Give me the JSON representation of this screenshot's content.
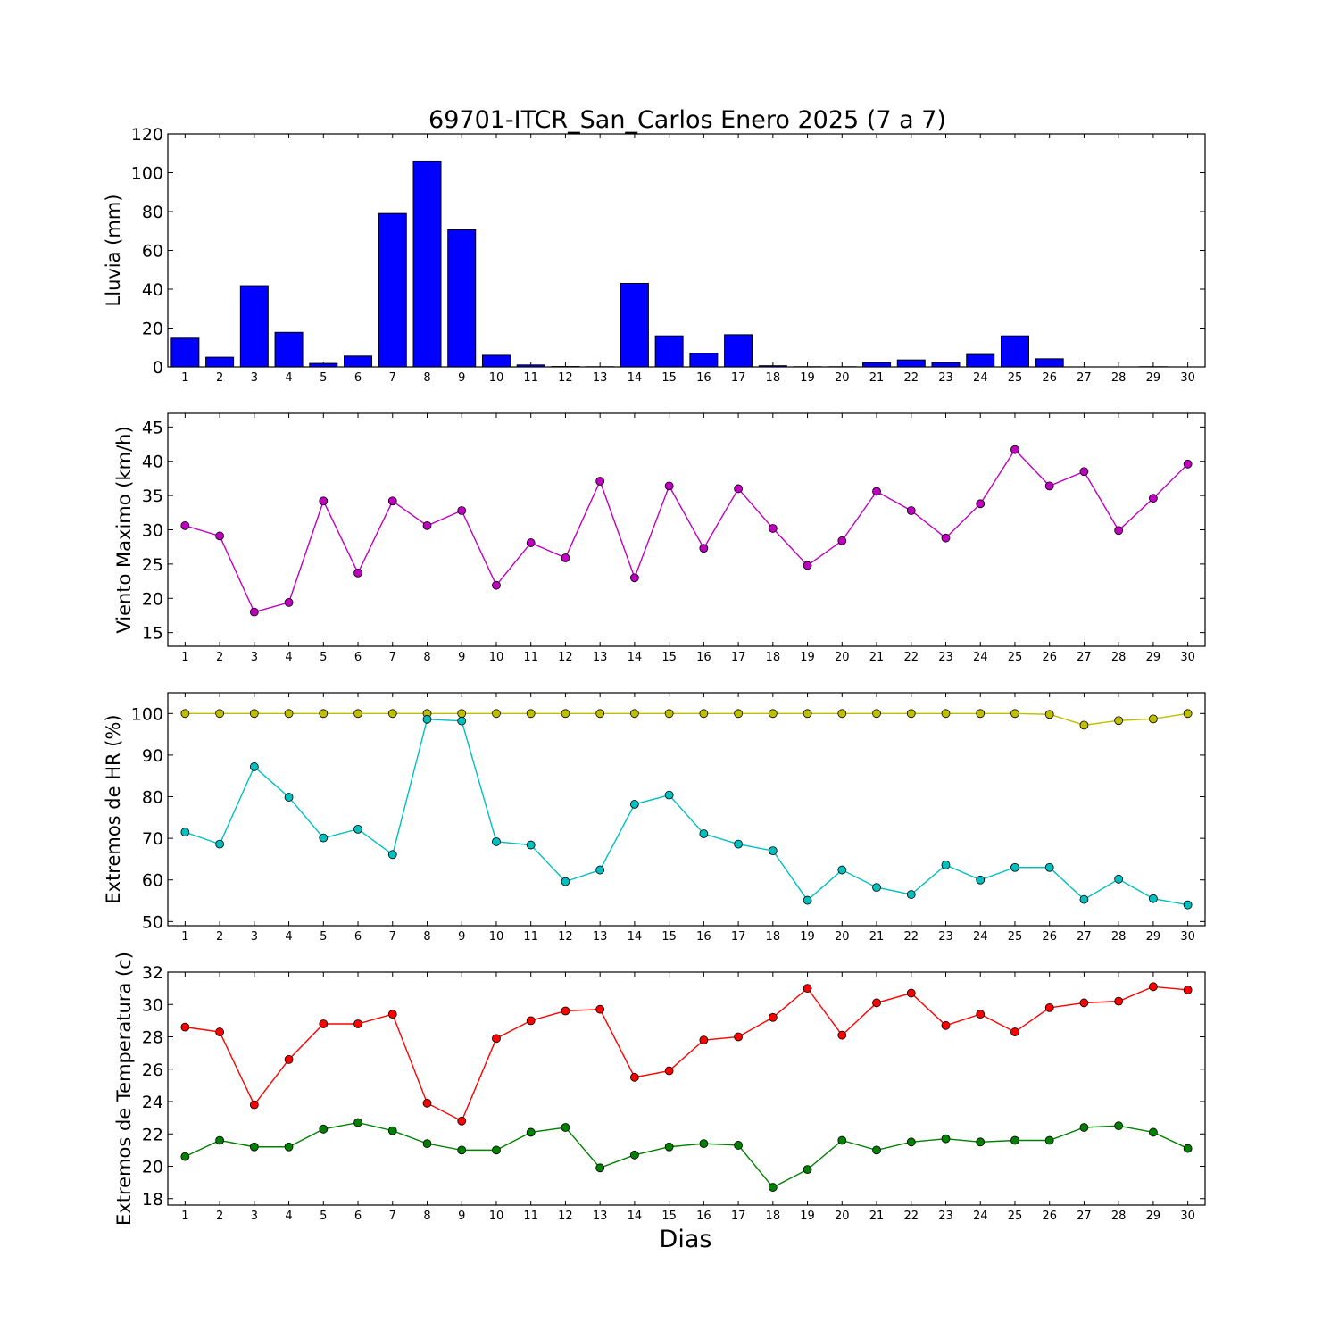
{
  "chart_data": {
    "title": "69701-ITCR_San_Carlos Enero 2025  (7 a 7)",
    "xlabel": "Dias",
    "days": [
      "1",
      "2",
      "3",
      "4",
      "5",
      "6",
      "7",
      "8",
      "9",
      "10",
      "11",
      "12",
      "13",
      "14",
      "15",
      "16",
      "17",
      "18",
      "19",
      "20",
      "21",
      "22",
      "23",
      "24",
      "25",
      "26",
      "27",
      "28",
      "29",
      "30"
    ],
    "panels": [
      {
        "type": "bar",
        "ylabel": "Lluvia (mm)",
        "ylim": [
          0,
          120
        ],
        "yticks": [
          0,
          20,
          40,
          60,
          80,
          100,
          120
        ],
        "series": [
          {
            "color": "#0000ff",
            "values": [
              14.8,
              5.0,
              41.8,
              17.8,
              1.8,
              5.6,
              79.0,
              106.0,
              70.6,
              6.0,
              1.0,
              0.2,
              0.1,
              43.0,
              16.0,
              7.0,
              16.6,
              0.6,
              0.1,
              0.1,
              2.2,
              3.6,
              2.2,
              6.4,
              16.0,
              4.2,
              0.0,
              0.0,
              0.1,
              0.0
            ]
          }
        ]
      },
      {
        "type": "line",
        "ylabel": "Viento Maximo (km/h)",
        "ylim": [
          13,
          47
        ],
        "yticks": [
          15,
          20,
          25,
          30,
          35,
          40,
          45
        ],
        "series": [
          {
            "color": "#bf00bf",
            "values": [
              30.6,
              29.1,
              18.0,
              19.4,
              34.2,
              23.7,
              34.2,
              30.6,
              32.8,
              21.9,
              28.1,
              25.9,
              37.1,
              23.0,
              36.4,
              27.3,
              36.0,
              30.2,
              24.8,
              28.4,
              35.6,
              32.8,
              28.8,
              33.8,
              41.7,
              36.4,
              38.5,
              29.9,
              34.6,
              39.6
            ]
          }
        ]
      },
      {
        "type": "line",
        "ylabel": "Extremos de HR (%)",
        "ylim": [
          49,
          105
        ],
        "yticks": [
          50,
          60,
          70,
          80,
          90,
          100
        ],
        "series": [
          {
            "color": "#bfbf00",
            "values": [
              100,
              100,
              100,
              100,
              100,
              100,
              100,
              100,
              100,
              100,
              100,
              100,
              100,
              100,
              100,
              100,
              100,
              100,
              100,
              100,
              100,
              100,
              100,
              100,
              100,
              99.8,
              97.2,
              98.3,
              98.7,
              100
            ]
          },
          {
            "color": "#00bfbf",
            "values": [
              71.5,
              68.6,
              87.2,
              79.9,
              70.1,
              72.2,
              66.1,
              98.6,
              98.2,
              69.2,
              68.4,
              59.6,
              62.4,
              78.2,
              80.4,
              71.1,
              68.6,
              67.0,
              55.1,
              62.4,
              58.2,
              56.5,
              63.6,
              60.0,
              63.0,
              63.0,
              55.3,
              60.2,
              55.5,
              54.0
            ]
          }
        ]
      },
      {
        "type": "line",
        "ylabel": "Extremos de Temperatura (c)",
        "ylim": [
          17.6,
          32
        ],
        "yticks": [
          18,
          20,
          22,
          24,
          26,
          28,
          30,
          32
        ],
        "series": [
          {
            "color": "#ff0000",
            "values": [
              28.6,
              28.3,
              23.8,
              26.6,
              28.8,
              28.8,
              29.4,
              23.9,
              22.8,
              27.9,
              29.0,
              29.6,
              29.7,
              25.5,
              25.9,
              27.8,
              28.0,
              29.2,
              31.0,
              28.1,
              30.1,
              30.7,
              28.7,
              29.4,
              28.3,
              29.8,
              30.1,
              30.2,
              31.1,
              30.9
            ]
          },
          {
            "color": "#008000",
            "values": [
              20.6,
              21.6,
              21.2,
              21.2,
              22.3,
              22.7,
              22.2,
              21.4,
              21.0,
              21.0,
              22.1,
              22.4,
              19.9,
              20.7,
              21.2,
              21.4,
              21.3,
              18.7,
              19.8,
              21.6,
              21.0,
              21.5,
              21.7,
              21.5,
              21.6,
              21.6,
              22.4,
              22.5,
              22.1,
              21.1
            ]
          }
        ]
      }
    ]
  }
}
